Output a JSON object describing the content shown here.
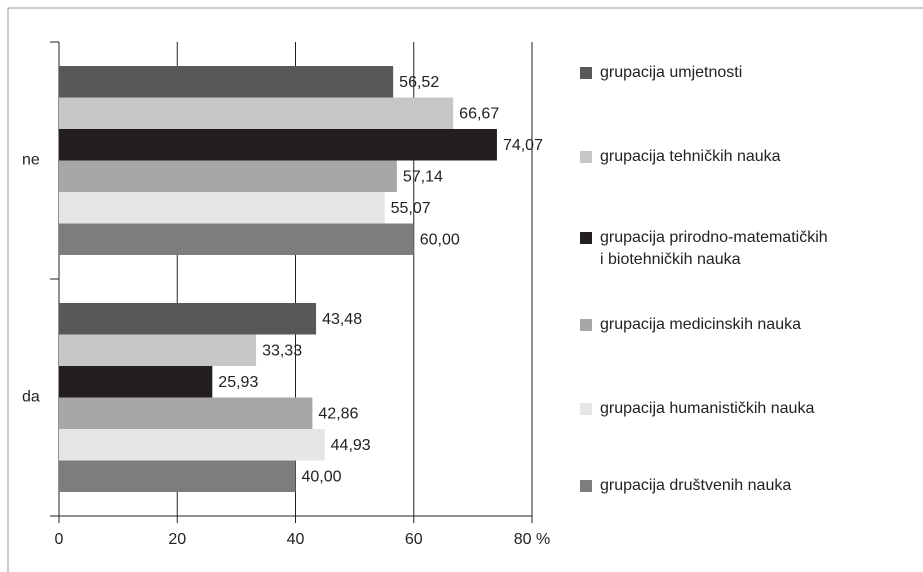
{
  "chart_data": {
    "type": "bar",
    "orientation": "horizontal",
    "categories": [
      "ne",
      "da"
    ],
    "series": [
      {
        "name": "grupacija umjetnosti",
        "color": "#58585a",
        "values": [
          56.52,
          43.48
        ],
        "value_labels": [
          "56,52",
          "43,48"
        ]
      },
      {
        "name": "grupacija tehničkih nauka",
        "color": "#c6c6c6",
        "values": [
          66.67,
          33.33
        ],
        "value_labels": [
          "66,67",
          "33,33"
        ]
      },
      {
        "name": "grupacija prirodno-matematičkih\ni biotehničkih nauka",
        "color": "#231f20",
        "values": [
          74.07,
          25.93
        ],
        "value_labels": [
          "74,07",
          "25,93"
        ]
      },
      {
        "name": "grupacija medicinskih nauka",
        "color": "#a7a7a9",
        "values": [
          57.14,
          42.86
        ],
        "value_labels": [
          "57,14",
          "42,86"
        ]
      },
      {
        "name": "grupacija humanističkih nauka",
        "color": "#e6e6e6",
        "values": [
          55.07,
          44.93
        ],
        "value_labels": [
          "55,07",
          "44,93"
        ]
      },
      {
        "name": "grupacija društvenih nauka",
        "color": "#7d7d7f",
        "values": [
          60.0,
          40.0
        ],
        "value_labels": [
          "60,00",
          "40,00"
        ]
      }
    ],
    "xlim": [
      0,
      80
    ],
    "xticks": [
      0,
      20,
      40,
      60,
      {
        "value": 80,
        "label": "80 %"
      }
    ],
    "grid": true
  }
}
